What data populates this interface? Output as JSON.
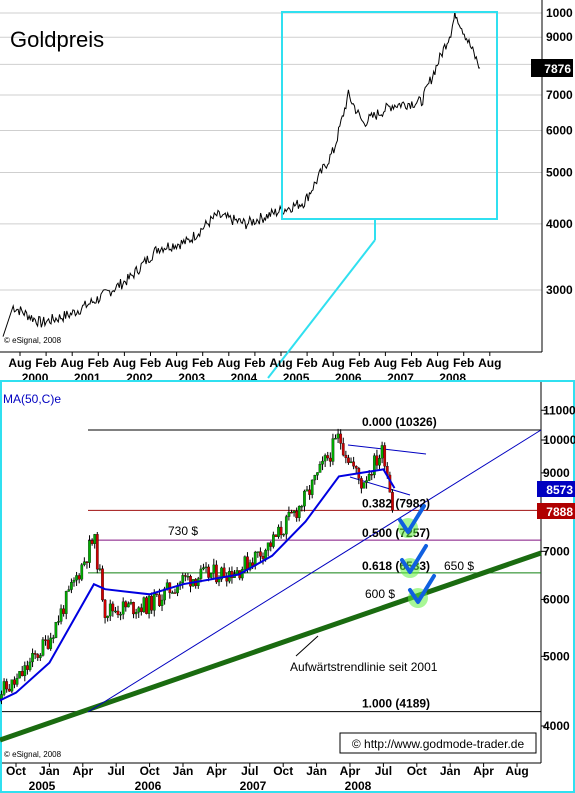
{
  "top_chart": {
    "title": "Goldpreis",
    "credit": "© eSignal, 2008",
    "y_ticks": [
      "1000",
      "9000",
      "8000",
      "7000",
      "6000",
      "5000",
      "4000",
      "3000"
    ],
    "last_value": "7876",
    "x_months": [
      "Aug",
      "Feb",
      "Aug",
      "Feb",
      "Aug",
      "Feb",
      "Aug",
      "Feb",
      "Aug",
      "Feb",
      "Aug",
      "Feb",
      "Aug",
      "Feb",
      "Aug",
      "Feb",
      "Aug",
      "Feb",
      "Aug"
    ],
    "x_years": [
      "2000",
      "2001",
      "2002",
      "2003",
      "2004",
      "2005",
      "2006",
      "2007",
      "2008"
    ]
  },
  "bottom_chart": {
    "indicator": "MA(50,C)e",
    "credit": "© eSignal, 2008",
    "watermark": "© http://www.godmode-trader.de",
    "y_ticks": [
      "11000",
      "10000",
      "9000",
      "8000",
      "7000",
      "6000",
      "5000",
      "4000"
    ],
    "ma_value": "8573",
    "last_value": "7888",
    "annotations": {
      "fib_0": "0.000 (10326)",
      "fib_382": "0.382 (7982)",
      "fib_500": "0.500 (7257)",
      "fib_618": "0.618 (6533)",
      "fib_1": "1.000 (4189)",
      "p730": "730 $",
      "p650": "650 $",
      "p600": "600 $",
      "trend": "Aufwärtstrendlinie seit 2001"
    },
    "x_months": [
      "Oct",
      "Jan",
      "Apr",
      "Jul",
      "Oct",
      "Jan",
      "Apr",
      "Jul",
      "Oct",
      "Jan",
      "Apr",
      "Jul",
      "Oct",
      "Jan",
      "Apr",
      "Aug"
    ],
    "x_years": [
      "2005",
      "2006",
      "2007",
      "2008"
    ]
  },
  "chart_data": [
    {
      "type": "line",
      "title": "Goldpreis",
      "x": [
        "2000-08",
        "2001-02",
        "2001-08",
        "2002-02",
        "2002-08",
        "2003-02",
        "2003-08",
        "2004-02",
        "2004-08",
        "2005-02",
        "2005-08",
        "2006-02",
        "2006-05",
        "2006-08",
        "2007-02",
        "2007-08",
        "2008-02",
        "2008-03",
        "2008-08"
      ],
      "y": [
        2800,
        2600,
        2700,
        2900,
        3150,
        3600,
        3700,
        4150,
        4000,
        4200,
        4400,
        5500,
        7000,
        6200,
        6700,
        6800,
        9200,
        10000,
        7876
      ],
      "y_scale": "log",
      "ylim": [
        2450,
        10300
      ]
    },
    {
      "type": "line",
      "x": [
        "2005-08",
        "2005-10",
        "2006-01",
        "2006-05",
        "2006-06",
        "2006-10",
        "2007-01",
        "2007-06",
        "2007-09",
        "2007-12",
        "2008-03",
        "2008-05",
        "2008-07",
        "2008-08"
      ],
      "series": [
        {
          "name": "",
          "values": [
            4400,
            4600,
            5300,
            7300,
            5800,
            5900,
            6400,
            6600,
            7200,
            8300,
            10100,
            8700,
            9700,
            7888
          ]
        },
        {
          "name": "MA(50,C)e",
          "values": [
            4300,
            4450,
            4900,
            6300,
            6200,
            6100,
            6300,
            6500,
            6900,
            7700,
            8900,
            9000,
            9100,
            8573
          ]
        }
      ],
      "fibonacci": [
        {
          "level": "0.000",
          "value": 10326
        },
        {
          "level": "0.382",
          "value": 7982
        },
        {
          "level": "0.500",
          "value": 7257
        },
        {
          "level": "0.618",
          "value": 6533
        },
        {
          "level": "1.000",
          "value": 4189
        }
      ],
      "y_scale": "log",
      "ylim": [
        3850,
        11300
      ]
    }
  ],
  "colors": {
    "frame_cyan": "#30e0f0",
    "ma_blue": "#0000e0",
    "trend_green": "#1a6b10",
    "fib_red": "#a01010",
    "fib_purple": "#801080",
    "fib_green": "#108010",
    "check_blue": "#1060e0",
    "glow_green": "#60f040",
    "candle_up": "#00aa00",
    "candle_down": "#cc0000"
  }
}
